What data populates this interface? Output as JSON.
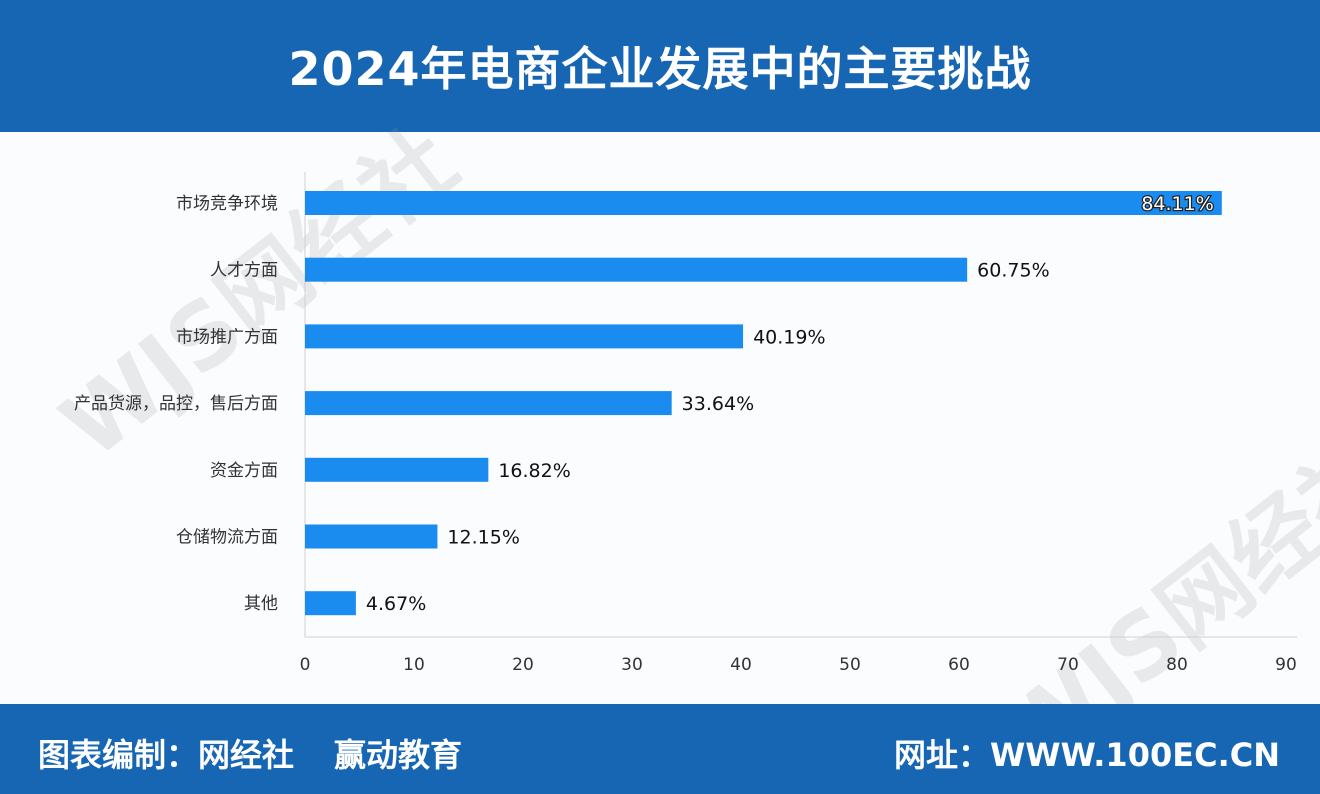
{
  "header": {
    "title": "2024年电商企业发展中的主要挑战"
  },
  "footer": {
    "compiled_by": "图表编制：网经社",
    "partner": "赢动教育",
    "website": "网址：WWW.100EC.CN"
  },
  "watermark": {
    "text": "WJS网经社",
    "url": "WWW.100EC.CN"
  },
  "colors": {
    "header": "#1766b3",
    "bar": "#1a8cf0"
  },
  "chart_data": {
    "type": "bar",
    "orientation": "horizontal",
    "title": "2024年电商企业发展中的主要挑战",
    "categories": [
      "市场竞争环境",
      "人才方面",
      "市场推广方面",
      "产品货源，品控，售后方面",
      "资金方面",
      "仓储物流方面",
      "其他"
    ],
    "values": [
      84.11,
      60.75,
      40.19,
      33.64,
      16.82,
      12.15,
      4.67
    ],
    "labels": [
      "84.11%",
      "60.75%",
      "40.19%",
      "33.64%",
      "16.82%",
      "12.15%",
      "4.67%"
    ],
    "xlim": [
      0,
      90
    ],
    "xticks": [
      "0",
      "10",
      "20",
      "30",
      "40",
      "50",
      "60",
      "70",
      "80",
      "90"
    ],
    "xlabel": "",
    "ylabel": "",
    "grid": false
  }
}
